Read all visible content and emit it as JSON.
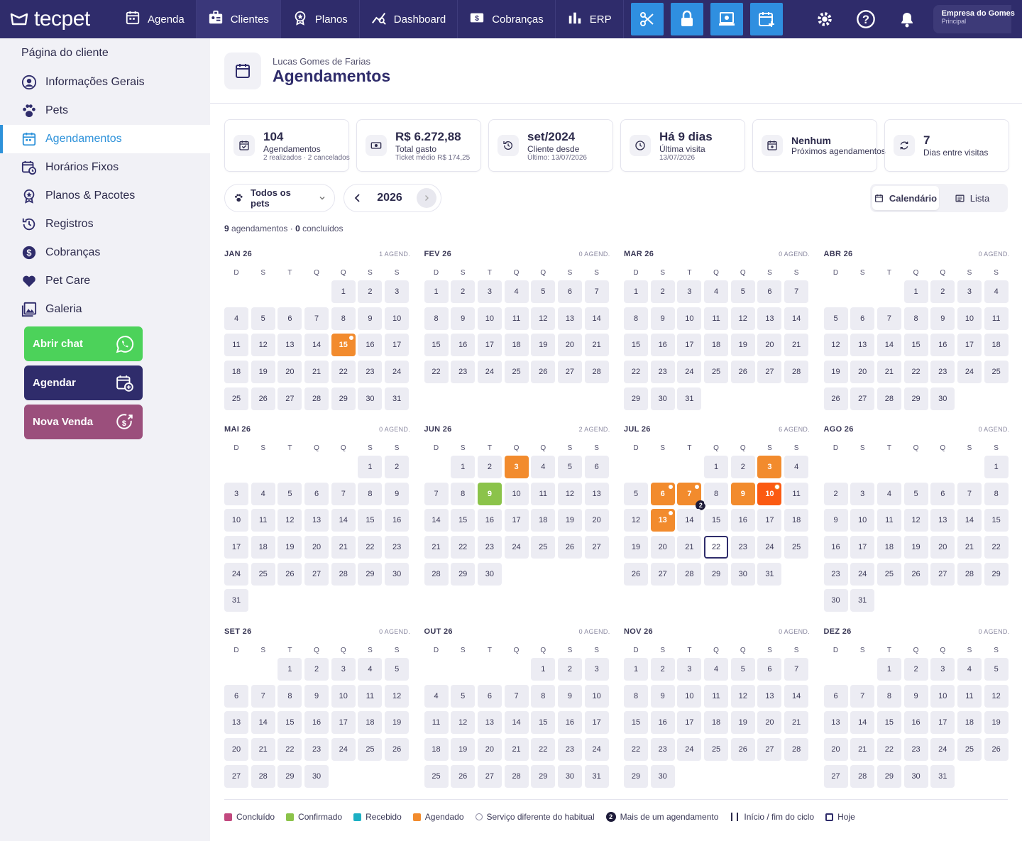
{
  "app": {
    "logo": "tecpet"
  },
  "nav": [
    {
      "label": "Agenda",
      "icon": "calendar-icon"
    },
    {
      "label": "Clientes",
      "icon": "clients-icon",
      "active": true
    },
    {
      "label": "Planos",
      "icon": "plans-icon"
    },
    {
      "label": "Dashboard",
      "icon": "dashboard-icon"
    },
    {
      "label": "Cobranças",
      "icon": "billing-icon"
    },
    {
      "label": "ERP",
      "icon": "erp-icon"
    }
  ],
  "company": {
    "name": "Empresa do Gomes",
    "sub": "Principal"
  },
  "sidebar": {
    "title": "Página do cliente",
    "items": [
      {
        "label": "Informações Gerais",
        "icon": "user-circle-icon"
      },
      {
        "label": "Pets",
        "icon": "paw-icon"
      },
      {
        "label": "Agendamentos",
        "icon": "calendar-icon",
        "active": true
      },
      {
        "label": "Horários Fixos",
        "icon": "calendar-clock-icon"
      },
      {
        "label": "Planos & Pacotes",
        "icon": "badge-icon"
      },
      {
        "label": "Registros",
        "icon": "history-icon"
      },
      {
        "label": "Cobranças",
        "icon": "dollar-icon"
      },
      {
        "label": "Pet Care",
        "icon": "heart-icon"
      },
      {
        "label": "Galeria",
        "icon": "gallery-icon"
      }
    ],
    "buttons": [
      {
        "label": "Abrir chat",
        "color": "#4cd25a",
        "icon": "whatsapp-icon"
      },
      {
        "label": "Agendar",
        "color": "#2f2c6b",
        "icon": "calendar-add-icon"
      },
      {
        "label": "Nova Venda",
        "color": "#9b4f7c",
        "icon": "sale-icon"
      }
    ]
  },
  "header": {
    "client": "Lucas Gomes de Farias",
    "title": "Agendamentos"
  },
  "cards": [
    {
      "value": "104",
      "label": "Agendamentos",
      "sub": "2 realizados · 2 cancelados"
    },
    {
      "value": "R$ 6.272,88",
      "label": "Total gasto",
      "sub": "Ticket médio R$ 174,25"
    },
    {
      "value": "set/2024",
      "label": "Cliente desde",
      "sub": "Último: 13/07/2026"
    },
    {
      "value": "Há 9 dias",
      "label": "Última visita",
      "sub": "13/07/2026"
    },
    {
      "value": "Nenhum",
      "label": "Próximos agendamentos",
      "sub": ""
    },
    {
      "value": "7",
      "label": "Dias entre visitas",
      "sub": ""
    }
  ],
  "filters": {
    "pets": "Todos os pets",
    "year": "2026",
    "view_calendar": "Calendário",
    "view_list": "Lista"
  },
  "summary": {
    "count": "9",
    "count_label": " agendamentos · ",
    "done": "0",
    "done_label": " concluídos"
  },
  "weekdays": [
    "D",
    "S",
    "T",
    "Q",
    "Q",
    "S",
    "S"
  ],
  "months": [
    {
      "name": "JAN 26",
      "count": "1 AGEND.",
      "start": 4,
      "days": 31,
      "marks": {
        "15": "ag-dot"
      }
    },
    {
      "name": "FEV 26",
      "count": "0 AGEND.",
      "start": 0,
      "days": 28,
      "marks": {}
    },
    {
      "name": "MAR 26",
      "count": "0 AGEND.",
      "start": 0,
      "days": 31,
      "marks": {}
    },
    {
      "name": "ABR 26",
      "count": "0 AGEND.",
      "start": 3,
      "days": 30,
      "marks": {}
    },
    {
      "name": "MAI 26",
      "count": "0 AGEND.",
      "start": 5,
      "days": 31,
      "marks": {}
    },
    {
      "name": "JUN 26",
      "count": "2 AGEND.",
      "start": 1,
      "days": 30,
      "marks": {
        "3": "ag",
        "9": "cf"
      }
    },
    {
      "name": "JUL 26",
      "count": "6 AGEND.",
      "start": 3,
      "days": 31,
      "marks": {
        "3": "ag",
        "6": "ag-dot",
        "7": "ag-dot-multi",
        "9": "ag",
        "10": "ag2-dot",
        "13": "ag-dot",
        "22": "today"
      }
    },
    {
      "name": "AGO 26",
      "count": "0 AGEND.",
      "start": 6,
      "days": 31,
      "marks": {}
    },
    {
      "name": "SET 26",
      "count": "0 AGEND.",
      "start": 2,
      "days": 30,
      "marks": {}
    },
    {
      "name": "OUT 26",
      "count": "0 AGEND.",
      "start": 4,
      "days": 31,
      "marks": {}
    },
    {
      "name": "NOV 26",
      "count": "0 AGEND.",
      "start": 0,
      "days": 30,
      "marks": {}
    },
    {
      "name": "DEZ 26",
      "count": "0 AGEND.",
      "start": 2,
      "days": 31,
      "marks": {}
    }
  ],
  "multi_count": "2",
  "legend": [
    {
      "label": "Concluído",
      "color": "#c2497f",
      "type": "sq"
    },
    {
      "label": "Confirmado",
      "color": "#8bc34a",
      "type": "sq"
    },
    {
      "label": "Recebido",
      "color": "#1cb0c4",
      "type": "sq"
    },
    {
      "label": "Agendado",
      "color": "#f28b2d",
      "type": "sq"
    },
    {
      "label": "Serviço diferente do habitual",
      "type": "circle"
    },
    {
      "label": "Mais de um agendamento",
      "type": "num",
      "num": "2"
    },
    {
      "label": "Início / fim do ciclo",
      "type": "bars"
    },
    {
      "label": "Hoje",
      "type": "today"
    }
  ]
}
